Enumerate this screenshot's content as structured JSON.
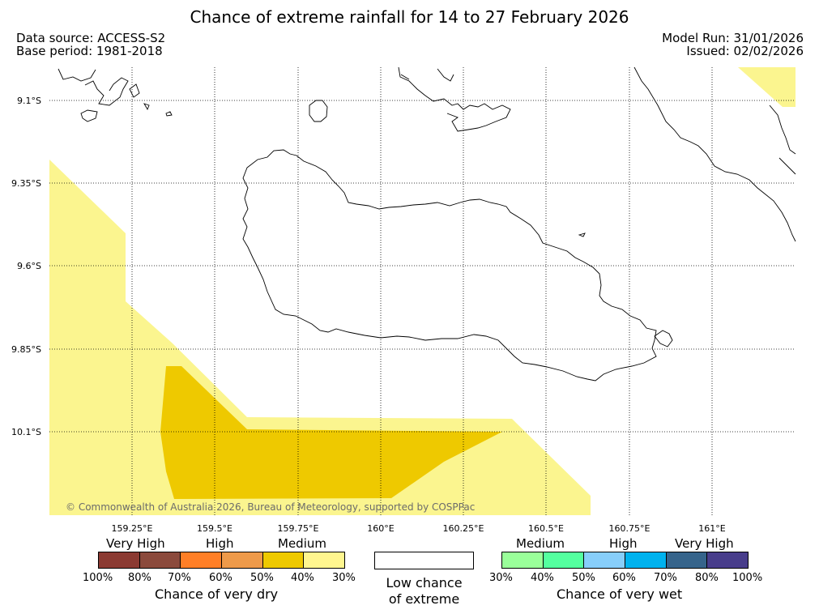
{
  "title": "Chance of extreme rainfall for 14 to 27 February 2026",
  "header": {
    "data_source": "Data source: ACCESS-S2",
    "base_period": "Base period: 1981-2018",
    "model_run": "Model Run: 31/01/2026",
    "issued": "Issued: 02/02/2026"
  },
  "map": {
    "lat_labels": [
      "9.1°S",
      "9.35°S",
      "9.6°S",
      "9.85°S",
      "10.1°S"
    ],
    "lon_labels": [
      "159.25°E",
      "159.5°E",
      "159.75°E",
      "160°E",
      "160.25°E",
      "160.5°E",
      "160.75°E",
      "161°E"
    ],
    "copyright": "© Commonwealth of Australia 2026, Bureau of Meteorology, supported by COSPPac",
    "colors": {
      "medium_dry": "#fbf58f",
      "high_dry_40": "#eec900"
    }
  },
  "legend": {
    "dry": {
      "categories": [
        "Very High",
        "High",
        "Medium"
      ],
      "colors": [
        "#8b3a32",
        "#8b4a3c",
        "#ff7f27",
        "#ee9a4a",
        "#eec900",
        "#fff68f"
      ],
      "ticks": [
        "100%",
        "80%",
        "70%",
        "60%",
        "50%",
        "40%",
        "30%"
      ],
      "caption": "Chance of very dry"
    },
    "low": {
      "line1": "Low chance",
      "line2": "of extreme"
    },
    "wet": {
      "categories": [
        "Medium",
        "High",
        "Very High"
      ],
      "colors": [
        "#9aff9a",
        "#54ff9f",
        "#87cefa",
        "#00b2ee",
        "#36648b",
        "#483d8b"
      ],
      "ticks": [
        "30%",
        "40%",
        "50%",
        "60%",
        "70%",
        "80%",
        "100%"
      ],
      "caption": "Chance of very wet"
    }
  }
}
